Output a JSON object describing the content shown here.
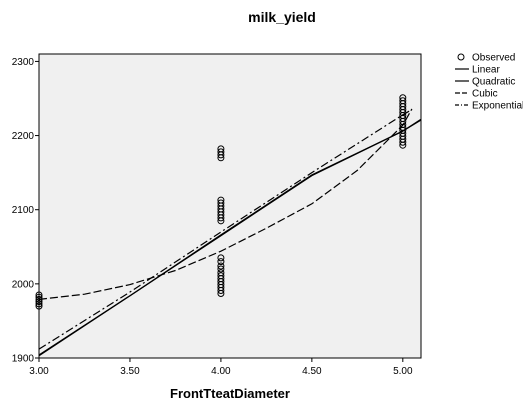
{
  "chart_data": {
    "type": "scatter",
    "title": "milk_yield",
    "xlabel": "FrontTteatDiameter",
    "ylabel": "",
    "xlim": [
      3.0,
      5.1
    ],
    "ylim": [
      1900,
      2310
    ],
    "x_ticks": [
      "3.00",
      "3.50",
      "4.00",
      "4.50",
      "5.00"
    ],
    "y_ticks": [
      "1900",
      "2000",
      "2100",
      "2200",
      "2300"
    ],
    "legend_position": "top-right",
    "plot_background": "#f0f0f0",
    "observed": {
      "name": "Observed",
      "points": [
        {
          "x": 3.0,
          "y": 1970
        },
        {
          "x": 3.0,
          "y": 1973
        },
        {
          "x": 3.0,
          "y": 1976
        },
        {
          "x": 3.0,
          "y": 1979
        },
        {
          "x": 3.0,
          "y": 1982
        },
        {
          "x": 3.0,
          "y": 1985
        },
        {
          "x": 4.0,
          "y": 1987
        },
        {
          "x": 4.0,
          "y": 1991
        },
        {
          "x": 4.0,
          "y": 1995
        },
        {
          "x": 4.0,
          "y": 1999
        },
        {
          "x": 4.0,
          "y": 2003
        },
        {
          "x": 4.0,
          "y": 2007
        },
        {
          "x": 4.0,
          "y": 2011
        },
        {
          "x": 4.0,
          "y": 2015
        },
        {
          "x": 4.0,
          "y": 2020
        },
        {
          "x": 4.0,
          "y": 2024
        },
        {
          "x": 4.0,
          "y": 2030
        },
        {
          "x": 4.0,
          "y": 2035
        },
        {
          "x": 4.0,
          "y": 2085
        },
        {
          "x": 4.0,
          "y": 2089
        },
        {
          "x": 4.0,
          "y": 2093
        },
        {
          "x": 4.0,
          "y": 2097
        },
        {
          "x": 4.0,
          "y": 2101
        },
        {
          "x": 4.0,
          "y": 2105
        },
        {
          "x": 4.0,
          "y": 2109
        },
        {
          "x": 4.0,
          "y": 2113
        },
        {
          "x": 4.0,
          "y": 2170
        },
        {
          "x": 4.0,
          "y": 2174
        },
        {
          "x": 4.0,
          "y": 2178
        },
        {
          "x": 4.0,
          "y": 2182
        },
        {
          "x": 5.0,
          "y": 2187
        },
        {
          "x": 5.0,
          "y": 2191
        },
        {
          "x": 5.0,
          "y": 2195
        },
        {
          "x": 5.0,
          "y": 2199
        },
        {
          "x": 5.0,
          "y": 2203
        },
        {
          "x": 5.0,
          "y": 2207
        },
        {
          "x": 5.0,
          "y": 2211
        },
        {
          "x": 5.0,
          "y": 2215
        },
        {
          "x": 5.0,
          "y": 2219
        },
        {
          "x": 5.0,
          "y": 2223
        },
        {
          "x": 5.0,
          "y": 2227
        },
        {
          "x": 5.0,
          "y": 2231
        },
        {
          "x": 5.0,
          "y": 2235
        },
        {
          "x": 5.0,
          "y": 2239
        },
        {
          "x": 5.0,
          "y": 2243
        },
        {
          "x": 5.0,
          "y": 2247
        },
        {
          "x": 5.0,
          "y": 2251
        }
      ]
    },
    "series": [
      {
        "name": "Linear",
        "dash": "none",
        "x": [
          3.0,
          3.5,
          4.0,
          4.5,
          5.0,
          5.1
        ],
        "y": [
          1903,
          1984,
          2065,
          2146,
          2206,
          2222
        ]
      },
      {
        "name": "Quadratic",
        "dash": "none",
        "x": [
          3.0,
          3.5,
          4.0,
          4.5,
          5.0,
          5.1
        ],
        "y": [
          1904,
          1984,
          2066,
          2147,
          2206,
          2221
        ]
      },
      {
        "name": "Cubic",
        "dash": "8,3",
        "x": [
          3.0,
          3.25,
          3.5,
          3.75,
          4.0,
          4.25,
          4.5,
          4.75,
          5.0,
          5.05
        ],
        "y": [
          1979,
          1986,
          1999,
          2018,
          2044,
          2075,
          2108,
          2153,
          2214,
          2236
        ]
      },
      {
        "name": "Exponential",
        "dash": "8,3,2,3",
        "x": [
          3.0,
          3.5,
          4.0,
          4.5,
          5.0,
          5.05
        ],
        "y": [
          1912,
          1989,
          2070,
          2150,
          2228,
          2235
        ]
      }
    ]
  }
}
